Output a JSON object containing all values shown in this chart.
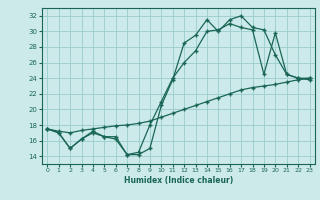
{
  "title": "",
  "xlabel": "Humidex (Indice chaleur)",
  "xlim": [
    -0.5,
    23.5
  ],
  "ylim": [
    13.0,
    33.0
  ],
  "yticks": [
    14,
    16,
    18,
    20,
    22,
    24,
    26,
    28,
    30,
    32
  ],
  "xticks": [
    0,
    1,
    2,
    3,
    4,
    5,
    6,
    7,
    8,
    9,
    10,
    11,
    12,
    13,
    14,
    15,
    16,
    17,
    18,
    19,
    20,
    21,
    22,
    23
  ],
  "bg_color": "#cceaea",
  "grid_color": "#99cccc",
  "line_color": "#1a6655",
  "line1_y": [
    17.5,
    17.0,
    15.0,
    16.2,
    17.0,
    16.5,
    16.2,
    14.2,
    14.2,
    15.0,
    20.5,
    23.8,
    28.5,
    29.5,
    31.5,
    30.0,
    31.5,
    32.0,
    30.5,
    30.2,
    27.0,
    24.5,
    24.0,
    24.0
  ],
  "line2_y": [
    17.5,
    17.0,
    15.0,
    16.2,
    17.2,
    16.5,
    16.5,
    14.2,
    14.5,
    18.0,
    21.0,
    24.0,
    26.0,
    27.5,
    30.0,
    30.2,
    31.0,
    30.5,
    30.2,
    24.5,
    29.8,
    24.5,
    24.0,
    23.8
  ],
  "line3_y": [
    17.5,
    17.2,
    17.0,
    17.3,
    17.5,
    17.7,
    17.9,
    18.0,
    18.2,
    18.5,
    19.0,
    19.5,
    20.0,
    20.5,
    21.0,
    21.5,
    22.0,
    22.5,
    22.8,
    23.0,
    23.2,
    23.5,
    23.8,
    24.0
  ],
  "xtick_fontsize": 4.5,
  "ytick_fontsize": 5.0,
  "xlabel_fontsize": 5.5,
  "linewidth": 0.9,
  "markersize": 2.5
}
